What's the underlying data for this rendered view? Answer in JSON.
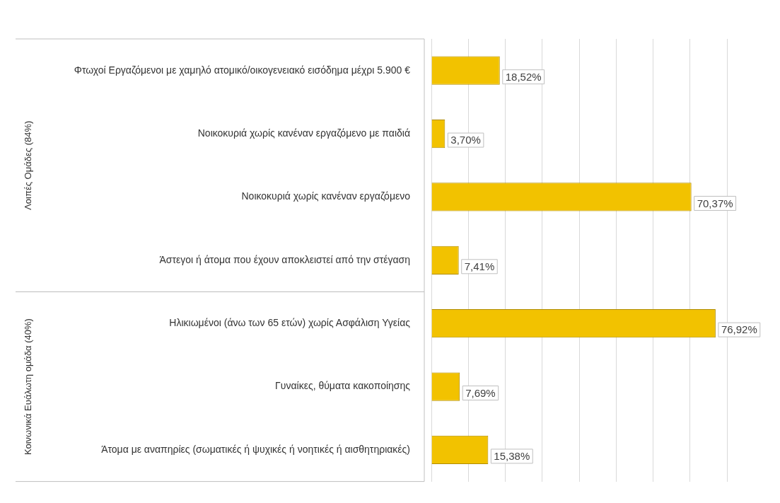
{
  "chart_data": {
    "type": "bar",
    "orientation": "horizontal",
    "categories": [
      "Φτωχοί Εργαζόμενοι με χαμηλό ατομικό/οικογενειακό εισόδημα μέχρι 5.900 €",
      "Νοικοκυριά χωρίς κανέναν εργαζόμενο με παιδιά",
      "Νοικοκυριά χωρίς κανέναν εργαζόμενο",
      "Άστεγοι ή άτομα που έχουν αποκλειστεί από την στέγαση",
      "Ηλικιωμένοι (άνω των 65 ετών) χωρίς Ασφάλιση Υγείας",
      "Γυναίκες, θύματα κακοποίησης",
      "Άτομα με αναπηρίες (σωματικές ή ψυχικές ή νοητικές ή αισθητηριακές)"
    ],
    "values": [
      18.52,
      3.7,
      70.37,
      7.41,
      76.92,
      7.69,
      15.38
    ],
    "value_labels": [
      "18,52%",
      "3,70%",
      "70,37%",
      "7,41%",
      "76,92%",
      "7,69%",
      "15,38%"
    ],
    "color": "#f2c200",
    "grid": "x",
    "legend": false,
    "annotations": [
      "Λοιπές Ομάδες (84%)",
      "Κοινωνικά Ευάλωτη ομάδα (40%)"
    ]
  }
}
